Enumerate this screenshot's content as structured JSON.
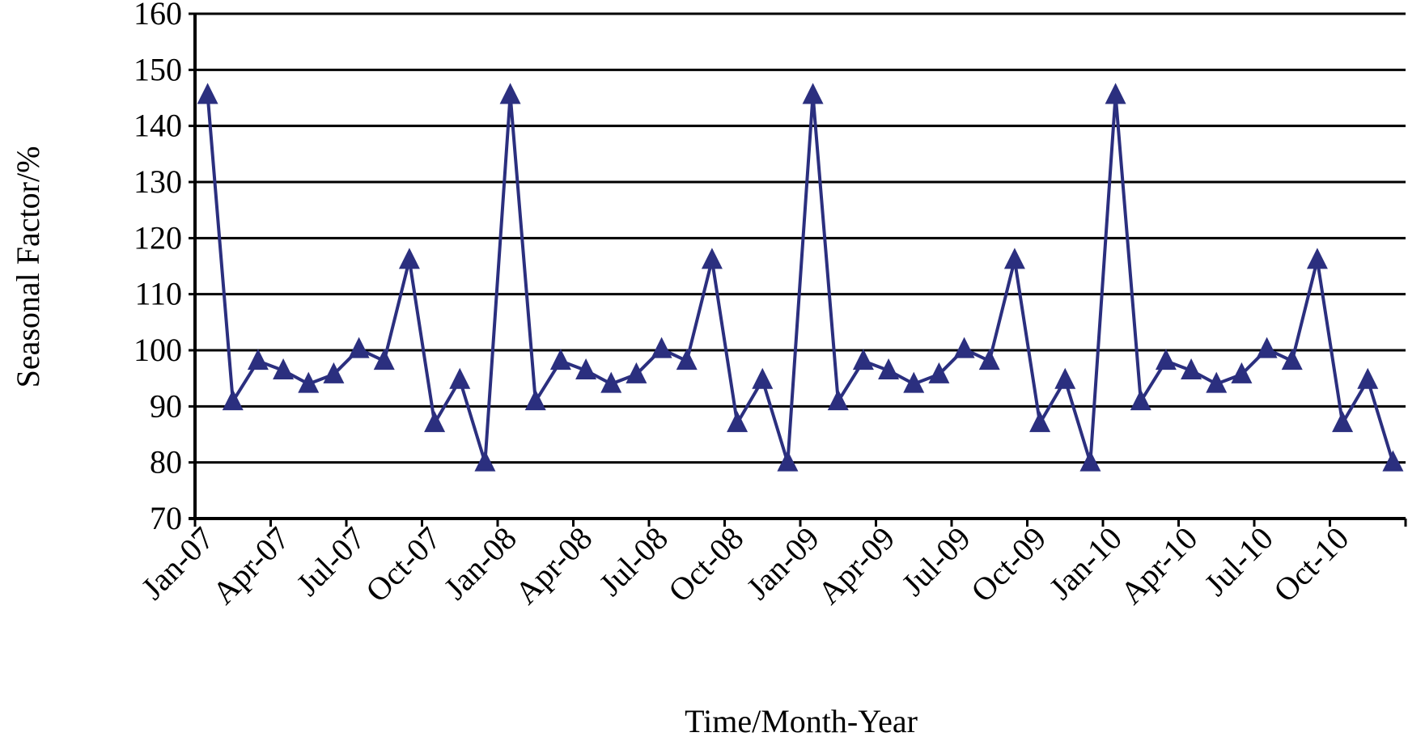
{
  "chart_data": {
    "type": "line",
    "title": "",
    "xlabel": "Time/Month-Year",
    "ylabel": "Seasonal Factor/%",
    "ylim": [
      70,
      160
    ],
    "yticks": [
      70,
      80,
      90,
      100,
      110,
      120,
      130,
      140,
      150,
      160
    ],
    "grid": true,
    "x_tick_labels": [
      "Jan-07",
      "Apr-07",
      "Jul-07",
      "Oct-07",
      "Jan-08",
      "Apr-08",
      "Jul-08",
      "Oct-08",
      "Jan-09",
      "Apr-09",
      "Jul-09",
      "Oct-09",
      "Jan-10",
      "Apr-10",
      "Jul-10",
      "Oct-10"
    ],
    "series": [
      {
        "name": "Seasonal Factor",
        "color": "#2b2f7f",
        "marker": "triangle",
        "values": [
          145.5,
          90.9,
          98.1,
          96.4,
          94.0,
          95.7,
          100.2,
          98.1,
          116.1,
          87.0,
          94.7,
          80.0,
          145.5,
          90.9,
          98.1,
          96.4,
          94.0,
          95.7,
          100.2,
          98.1,
          116.1,
          87.0,
          94.7,
          80.0,
          145.5,
          90.9,
          98.1,
          96.4,
          94.0,
          95.7,
          100.2,
          98.1,
          116.1,
          87.0,
          94.7,
          80.0,
          145.5,
          90.9,
          98.1,
          96.4,
          94.0,
          95.7,
          100.2,
          98.1,
          116.1,
          87.0,
          94.7,
          80.0
        ]
      }
    ]
  }
}
